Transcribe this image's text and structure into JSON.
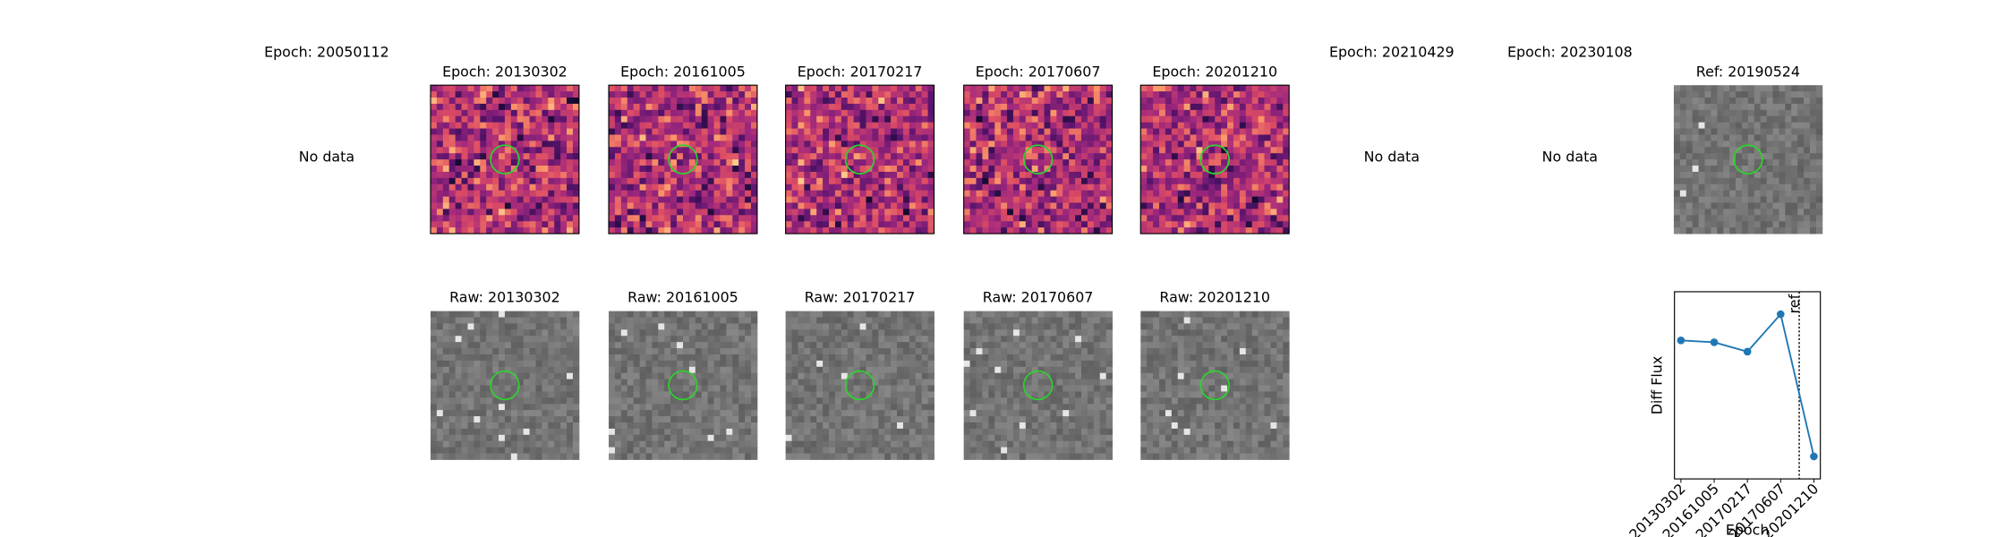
{
  "top_panels": [
    {
      "title": "Epoch: 20050112",
      "status": "No data"
    },
    {
      "title": "Epoch: 20130302"
    },
    {
      "title": "Epoch: 20161005"
    },
    {
      "title": "Epoch: 20170217"
    },
    {
      "title": "Epoch: 20170607"
    },
    {
      "title": "Epoch: 20201210"
    },
    {
      "title": "Epoch: 20210429",
      "status": "No data"
    },
    {
      "title": "Epoch: 20230108",
      "status": "No data"
    }
  ],
  "ref_panel": {
    "title": "Ref: 20190524"
  },
  "raw_panels": [
    {
      "title": "Raw: 20130302"
    },
    {
      "title": "Raw: 20161005"
    },
    {
      "title": "Raw: 20170217"
    },
    {
      "title": "Raw: 20170607"
    },
    {
      "title": "Raw: 20201210"
    }
  ],
  "chart_data": {
    "type": "line",
    "xlabel": "Epoch",
    "ylabel": "Diff Flux",
    "ref_label": "ref",
    "categories": [
      "20130302",
      "20161005",
      "20170217",
      "20170607",
      "20201210"
    ],
    "values": [
      0.74,
      0.73,
      0.68,
      0.88,
      0.12
    ],
    "color": "#1f77b4",
    "ylim": [
      0,
      1
    ]
  }
}
